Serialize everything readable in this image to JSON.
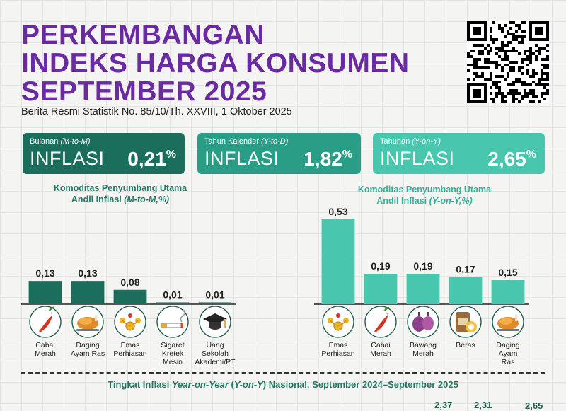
{
  "title": {
    "line1": "PERKEMBANGAN",
    "line2": "INDEKS HARGA KONSUMEN",
    "line3": "SEPTEMBER 2025"
  },
  "subtitle": "Berita Resmi Statistik No. 85/10/Th. XXVIII, 1 Oktober 2025",
  "cards": [
    {
      "label": "Bulanan ",
      "label_em": "(M-to-M)",
      "word": "INFLASI",
      "value": "0,21",
      "unit": "%",
      "color": "#1c6e5c"
    },
    {
      "label": "Tahun Kalender ",
      "label_em": "(Y-to-D)",
      "word": "INFLASI",
      "value": "1,82",
      "unit": "%",
      "color": "#2a9d86"
    },
    {
      "label": "Tahunan ",
      "label_em": "(Y-on-Y)",
      "word": "INFLASI",
      "value": "2,65",
      "unit": "%",
      "color": "#48c7ae"
    }
  ],
  "chart_data": [
    {
      "type": "bar",
      "title_line1": "Komoditas Penyumbang Utama",
      "title_line2": "Andil Inflasi ",
      "title_line2_em": "(M-to-M,%)",
      "categories": [
        "Cabai Merah",
        "Daging Ayam Ras",
        "Emas Perhiasan",
        "Sigaret Kretek Mesin",
        "Uang Sekolah Akademi/PT"
      ],
      "category_lines": [
        [
          "Cabai",
          "Merah"
        ],
        [
          "Daging",
          "Ayam Ras"
        ],
        [
          "Emas",
          "Perhiasan"
        ],
        [
          "Sigaret",
          "Kretek",
          "Mesin"
        ],
        [
          "Uang",
          "Sekolah",
          "Akademi/PT"
        ]
      ],
      "icons": [
        "chili-icon",
        "chicken-icon",
        "gold-icon",
        "cigarette-icon",
        "graduation-cap-icon"
      ],
      "values": [
        0.13,
        0.13,
        0.08,
        0.01,
        0.01
      ],
      "value_labels": [
        "0,13",
        "0,13",
        "0,08",
        "0,01",
        "0,01"
      ],
      "bar_color": "#1c6e5c"
    },
    {
      "type": "bar",
      "title_line1": "Komoditas Penyumbang Utama",
      "title_line2": "Andil Inflasi ",
      "title_line2_em": "(Y-on-Y,%)",
      "categories": [
        "Emas Perhiasan",
        "Cabai Merah",
        "Bawang Merah",
        "Beras",
        "Daging Ayam Ras"
      ],
      "category_lines": [
        [
          "Emas",
          "Perhiasan"
        ],
        [
          "Cabai",
          "Merah"
        ],
        [
          "Bawang",
          "Merah"
        ],
        [
          "Beras"
        ],
        [
          "Daging",
          "Ayam",
          "Ras"
        ]
      ],
      "icons": [
        "gold-icon",
        "chili-icon",
        "shallot-icon",
        "rice-icon",
        "chicken-icon"
      ],
      "values": [
        0.53,
        0.19,
        0.19,
        0.17,
        0.15
      ],
      "value_labels": [
        "0,53",
        "0,19",
        "0,19",
        "0,17",
        "0,15"
      ],
      "bar_color": "#48c7ae"
    }
  ],
  "footer": {
    "text_a": "Tingkat Inflasi ",
    "text_em1": "Year-on-Year",
    "text_b": " (",
    "text_em2": "Y-on-Y",
    "text_c": ") Nasional, September 2024–September 2025"
  },
  "peek_values": [
    "2,37",
    "2,31",
    "2,65"
  ]
}
